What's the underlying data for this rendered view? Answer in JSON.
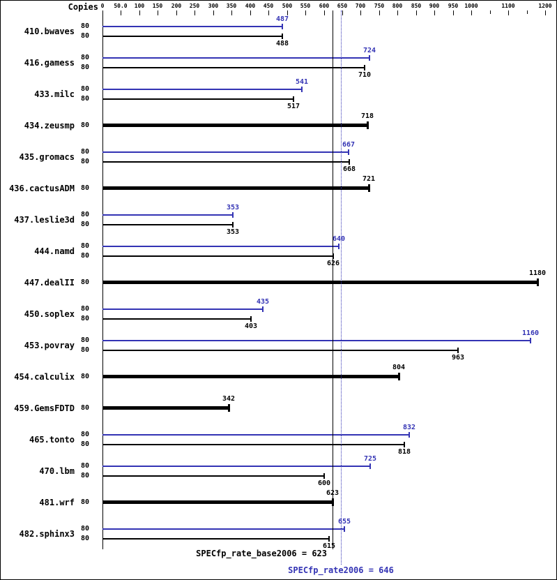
{
  "header": {
    "copies_label": "Copies"
  },
  "axis": {
    "ticks": [
      {
        "label": "0",
        "value": 0
      },
      {
        "label": "50.0",
        "value": 50
      },
      {
        "label": "100",
        "value": 100
      },
      {
        "label": "150",
        "value": 150
      },
      {
        "label": "200",
        "value": 200
      },
      {
        "label": "250",
        "value": 250
      },
      {
        "label": "300",
        "value": 300
      },
      {
        "label": "350",
        "value": 350
      },
      {
        "label": "400",
        "value": 400
      },
      {
        "label": "450",
        "value": 450
      },
      {
        "label": "500",
        "value": 500
      },
      {
        "label": "550",
        "value": 550
      },
      {
        "label": "600",
        "value": 600
      },
      {
        "label": "650",
        "value": 650
      },
      {
        "label": "700",
        "value": 700
      },
      {
        "label": "750",
        "value": 750
      },
      {
        "label": "800",
        "value": 800
      },
      {
        "label": "850",
        "value": 850
      },
      {
        "label": "900",
        "value": 900
      },
      {
        "label": "950",
        "value": 950
      },
      {
        "label": "1000",
        "value": 1000
      },
      {
        "label": "1100",
        "value": 1100
      },
      {
        "label": "1200",
        "value": 1200
      }
    ],
    "minor_ticks": [
      1050,
      1150
    ]
  },
  "chart_data": {
    "type": "bar",
    "orientation": "horizontal",
    "xlim": [
      0,
      1200
    ],
    "grid": false,
    "colors": {
      "peak": "#3333b4",
      "base": "#000000"
    },
    "benchmarks": [
      {
        "name": "410.bwaves",
        "copies": 80,
        "peak": 487,
        "base": 488
      },
      {
        "name": "416.gamess",
        "copies": 80,
        "peak": 724,
        "base": 710
      },
      {
        "name": "433.milc",
        "copies": 80,
        "peak": 541,
        "base": 517
      },
      {
        "name": "434.zeusmp",
        "copies": 80,
        "peak": null,
        "base": 718
      },
      {
        "name": "435.gromacs",
        "copies": 80,
        "peak": 667,
        "base": 668
      },
      {
        "name": "436.cactusADM",
        "copies": 80,
        "peak": null,
        "base": 721
      },
      {
        "name": "437.leslie3d",
        "copies": 80,
        "peak": 353,
        "base": 353
      },
      {
        "name": "444.namd",
        "copies": 80,
        "peak": 640,
        "base": 626
      },
      {
        "name": "447.dealII",
        "copies": 80,
        "peak": null,
        "base": 1180
      },
      {
        "name": "450.soplex",
        "copies": 80,
        "peak": 435,
        "base": 403
      },
      {
        "name": "453.povray",
        "copies": 80,
        "peak": 1160,
        "base": 963
      },
      {
        "name": "454.calculix",
        "copies": 80,
        "peak": null,
        "base": 804
      },
      {
        "name": "459.GemsFDTD",
        "copies": 80,
        "peak": null,
        "base": 342
      },
      {
        "name": "465.tonto",
        "copies": 80,
        "peak": 832,
        "base": 818
      },
      {
        "name": "470.lbm",
        "copies": 80,
        "peak": 725,
        "base": 600
      },
      {
        "name": "481.wrf",
        "copies": 80,
        "peak": null,
        "base": 623
      },
      {
        "name": "482.sphinx3",
        "copies": 80,
        "peak": 655,
        "base": 615
      }
    ],
    "summary": {
      "base_label": "SPECfp_rate_base2006 = 623",
      "base_value": 623,
      "peak_label": "SPECfp_rate2006 = 646",
      "peak_value": 646
    }
  }
}
